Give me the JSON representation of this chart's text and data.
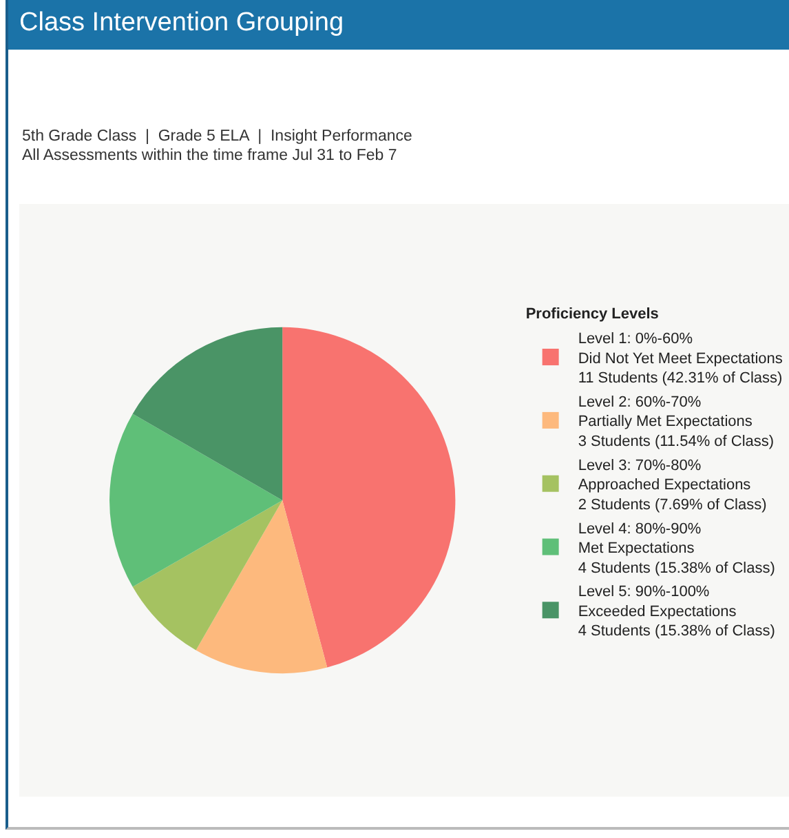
{
  "chart_data": {
    "type": "pie",
    "title": "Class Intervention Grouping",
    "subtitle": "5th Grade Class  |  Grade 5 ELA  |  Insight Performance\nAll Assessments within the time frame Jul 31 to Feb 7",
    "legend_title": "Proficiency Levels",
    "categories": [
      "Level 1: 0%-60%\nDid Not Yet Meet Expectations\n11 Students (42.31% of Class)",
      "Level 2: 60%-70%\nPartially Met Expectations\n3 Students (11.54% of Class)",
      "Level 3: 70%-80%\nApproached Expectations\n2 Students (7.69% of Class)",
      "Level 4: 80%-90%\nMet Expectations\n4 Students (15.38% of Class)",
      "Level 5: 90%-100%\nExceeded Expectations\n4 Students (15.38% of Class)"
    ],
    "values": [
      11,
      3,
      2,
      4,
      4
    ],
    "colors": [
      "#f8736f",
      "#fdb97d",
      "#a5c261",
      "#5fbf78",
      "#4a9466"
    ],
    "legend": "right"
  }
}
